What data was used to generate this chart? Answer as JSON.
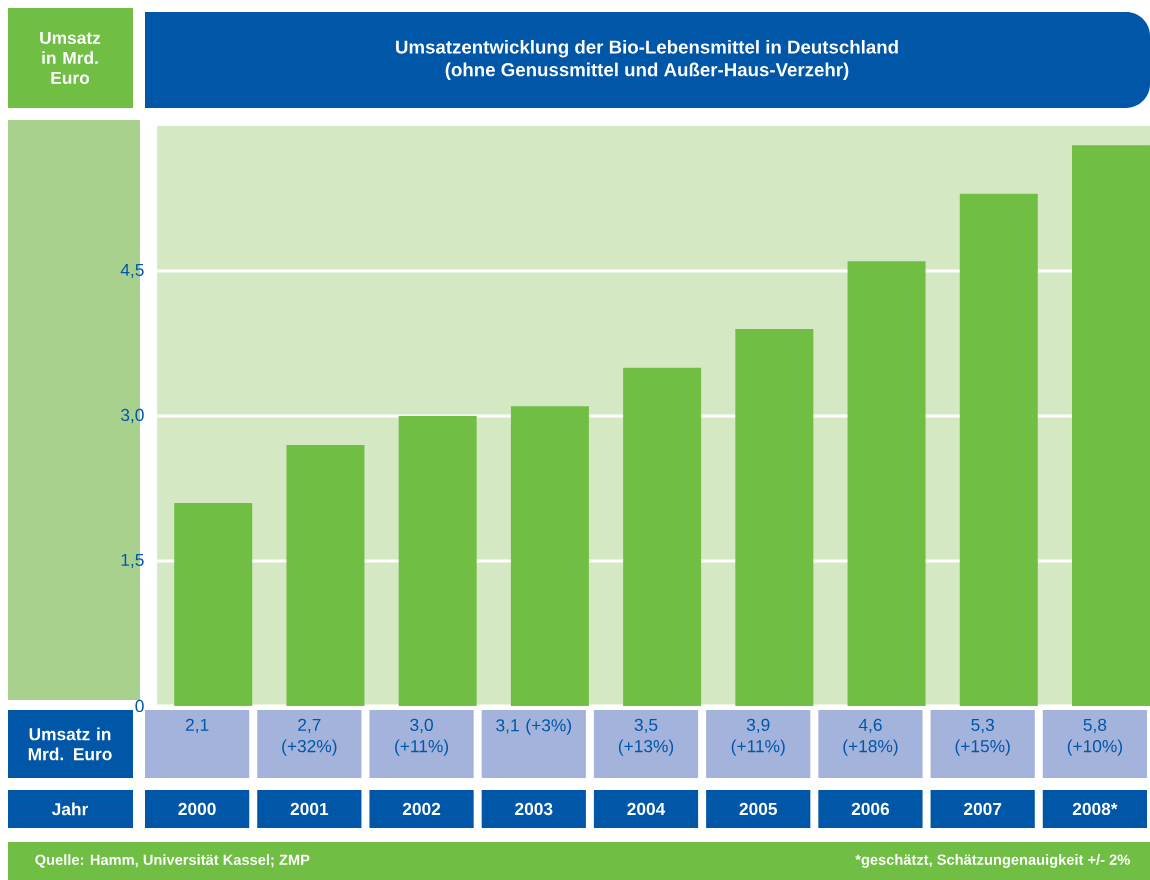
{
  "chart_data": {
    "type": "bar",
    "title": "Umsatzentwicklung der Bio-Lebensmittel in Deutschland",
    "subtitle": "(ohne Genussmittel und Außer-Haus-Verzehr)",
    "ylabel": "Umsatz in Mrd. Euro",
    "xlabel": "Jahr",
    "categories": [
      "2000",
      "2001",
      "2002",
      "2003",
      "2004",
      "2005",
      "2006",
      "2007",
      "2008*"
    ],
    "values": [
      2.1,
      2.7,
      3.0,
      3.1,
      3.5,
      3.9,
      4.6,
      5.3,
      5.8
    ],
    "value_labels": [
      "2,1",
      "2,7 (+32%)",
      "3,0 (+11%)",
      "3,1 (+3%)",
      "3,5 (+13%)",
      "3,9 (+11%)",
      "4,6 (+18%)",
      "5,3 (+15%)",
      "5,8 (+10%)"
    ],
    "color": "#70bf44",
    "ylim": [
      0,
      6
    ],
    "yticks": [
      0,
      {
        "value": 1.5,
        "label": "1,5"
      },
      {
        "value": 3.0,
        "label": "3,0"
      },
      {
        "value": 4.5,
        "label": "4,5"
      }
    ],
    "grid": "y",
    "annotations": [
      "Umsatz in Mrd. Euro",
      "Quelle: Hamm, Universität Kassel; ZMP",
      "*geschätzt, Schätzungenauigkeit +/- 2%"
    ]
  }
}
